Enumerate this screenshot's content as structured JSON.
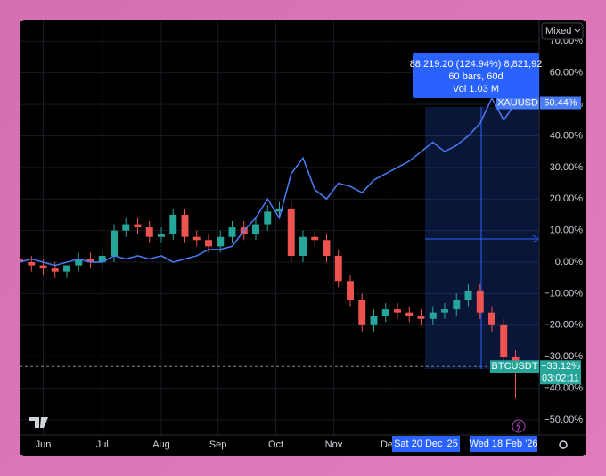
{
  "chart_data": {
    "type": "candlestick",
    "x": [
      0,
      1,
      2,
      3,
      4,
      5,
      6,
      7,
      8,
      9,
      10,
      11,
      12,
      13,
      14,
      15,
      16,
      17,
      18,
      19,
      20,
      21,
      22,
      23,
      24,
      25,
      26,
      27,
      28,
      29,
      30,
      31,
      32,
      33,
      34,
      35,
      36,
      37,
      38,
      39,
      40,
      41,
      42
    ],
    "xlim": [
      0,
      44
    ],
    "xticks": [
      {
        "value": 2,
        "label": "Jun"
      },
      {
        "value": 7,
        "label": "Jul"
      },
      {
        "value": 12,
        "label": "Aug"
      },
      {
        "value": 16.8,
        "label": "Sep"
      },
      {
        "value": 21.7,
        "label": "Oct"
      },
      {
        "value": 26.6,
        "label": "Nov"
      },
      {
        "value": 31.3,
        "label": "Dec"
      }
    ],
    "ylim": [
      -54.8,
      74.6
    ],
    "yticks": [
      {
        "value": 70,
        "label": "70.00%"
      },
      {
        "value": 60,
        "label": "60.00%"
      },
      {
        "value": 50,
        "label": "50.00%"
      },
      {
        "value": 40,
        "label": "40.00%"
      },
      {
        "value": 30,
        "label": "30.00%"
      },
      {
        "value": 20,
        "label": "20.00%"
      },
      {
        "value": 10,
        "label": "10.00%"
      },
      {
        "value": 0,
        "label": "0.00%"
      },
      {
        "value": -10,
        "label": "−10.00%"
      },
      {
        "value": -20,
        "label": "−20.00%"
      },
      {
        "value": -30,
        "label": "−30.00%"
      },
      {
        "value": -40,
        "label": "−40.00%"
      },
      {
        "value": -50,
        "label": "−50.00%"
      }
    ],
    "grid": true,
    "scale_mode": "Mixed",
    "series": [
      {
        "name": "BTCUSDT",
        "type": "candlestick",
        "up_color": "#26a69a",
        "down_color": "#ef5350",
        "open": [
          1,
          0,
          -1,
          -2,
          -3,
          -1,
          1,
          0,
          2,
          10,
          12,
          11,
          8,
          9,
          15,
          8,
          7,
          5,
          8,
          11,
          9,
          12,
          16,
          17,
          2,
          8,
          7,
          2,
          -6,
          -12,
          -20,
          -17,
          -15,
          -16,
          -17,
          -18,
          -16,
          -15,
          -12,
          -9,
          -16,
          -20,
          -30
        ],
        "high": [
          3,
          2,
          1,
          0,
          -1,
          3,
          3,
          4,
          12,
          14,
          14,
          13,
          11,
          17,
          17,
          10,
          9,
          10,
          13,
          13,
          14,
          18,
          19,
          19,
          10,
          10,
          9,
          4,
          -4,
          -10,
          -15,
          -13,
          -13,
          -14,
          -15,
          -14,
          -13,
          -10,
          -7,
          -7,
          -14,
          -18,
          -28
        ],
        "low": [
          -2,
          -3,
          -4,
          -5,
          -5,
          -3,
          -2,
          -2,
          0,
          8,
          9,
          6,
          6,
          7,
          6,
          5,
          3,
          3,
          6,
          7,
          7,
          10,
          14,
          0,
          0,
          5,
          0,
          -8,
          -14,
          -22,
          -22,
          -19,
          -18,
          -19,
          -20,
          -20,
          -18,
          -17,
          -14,
          -18,
          -22,
          -32,
          -43
        ],
        "close": [
          0,
          -1,
          -2,
          -3,
          -1,
          1,
          0,
          2,
          10,
          12,
          11,
          8,
          9,
          15,
          8,
          7,
          5,
          8,
          11,
          9,
          12,
          16,
          17,
          2,
          8,
          7,
          2,
          -6,
          -12,
          -20,
          -17,
          -15,
          -16,
          -17,
          -18,
          -16,
          -15,
          -12,
          -9,
          -16,
          -20,
          -30,
          -33.12
        ],
        "price_label": {
          "value": -33.12,
          "label": "−33.12%"
        },
        "timer": "03:02:11"
      },
      {
        "name": "XAUUSD",
        "type": "line",
        "color": "#4a7cf7",
        "values": [
          0,
          1,
          0,
          -1,
          0,
          1,
          0,
          0,
          2,
          1,
          2,
          1,
          2,
          0,
          1,
          2,
          4,
          4,
          5,
          10,
          14,
          20,
          14,
          28,
          33,
          23,
          20,
          25,
          24,
          22,
          26,
          28,
          30,
          32,
          35,
          38,
          35,
          37,
          40,
          44,
          52,
          45,
          50.44
        ],
        "price_label": {
          "value": 50.44,
          "label": "50.44%"
        }
      }
    ],
    "measure": {
      "lines": [
        "88,219.20 (124.94%) 8,821,92",
        "60 bars, 60d",
        "Vol 1.03 M"
      ],
      "start_label": "Sat 20 Dec '25",
      "end_label": "Wed 18 Feb '26"
    }
  }
}
